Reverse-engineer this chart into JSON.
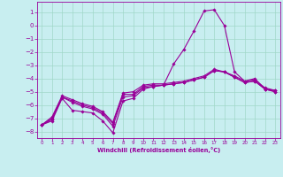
{
  "xlabel": "Windchill (Refroidissement éolien,°C)",
  "bg_color": "#c8eef0",
  "line_color": "#990099",
  "marker": "D",
  "markersize": 1.8,
  "linewidth": 0.8,
  "xlim": [
    -0.5,
    23.5
  ],
  "ylim": [
    -8.5,
    1.8
  ],
  "yticks": [
    1,
    0,
    -1,
    -2,
    -3,
    -4,
    -5,
    -6,
    -7,
    -8
  ],
  "xticks": [
    0,
    1,
    2,
    3,
    4,
    5,
    6,
    7,
    8,
    9,
    10,
    11,
    12,
    13,
    14,
    15,
    16,
    17,
    18,
    19,
    20,
    21,
    22,
    23
  ],
  "grid_color": "#a0d8c8",
  "series": [
    {
      "x": [
        0,
        1,
        2,
        3,
        4,
        5,
        6,
        7,
        8,
        9,
        10,
        11,
        12,
        13,
        14,
        15,
        16,
        17,
        18,
        19,
        20,
        21,
        22,
        23
      ],
      "y": [
        -7.5,
        -7.2,
        -5.5,
        -6.4,
        -6.5,
        -6.6,
        -7.2,
        -8.1,
        -5.7,
        -5.5,
        -4.8,
        -4.6,
        -4.5,
        -2.9,
        -1.8,
        -0.4,
        1.1,
        1.2,
        0.0,
        -3.5,
        -4.2,
        -4.0,
        -4.8,
        -4.9
      ]
    },
    {
      "x": [
        0,
        1,
        2,
        3,
        4,
        5,
        6,
        7,
        8,
        9,
        10,
        11,
        12,
        13,
        14,
        15,
        16,
        17,
        18,
        19,
        20,
        21,
        22,
        23
      ],
      "y": [
        -7.5,
        -7.1,
        -5.4,
        -5.8,
        -6.1,
        -6.3,
        -6.7,
        -7.6,
        -5.4,
        -5.3,
        -4.7,
        -4.6,
        -4.5,
        -4.4,
        -4.3,
        -4.1,
        -3.9,
        -3.4,
        -3.5,
        -3.9,
        -4.3,
        -4.2,
        -4.8,
        -5.0
      ]
    },
    {
      "x": [
        0,
        1,
        2,
        3,
        4,
        5,
        6,
        7,
        8,
        9,
        10,
        11,
        12,
        13,
        14,
        15,
        16,
        17,
        18,
        19,
        20,
        21,
        22,
        23
      ],
      "y": [
        -7.5,
        -7.0,
        -5.4,
        -5.7,
        -6.0,
        -6.2,
        -6.6,
        -7.4,
        -5.2,
        -5.2,
        -4.6,
        -4.5,
        -4.5,
        -4.4,
        -4.3,
        -4.1,
        -3.9,
        -3.4,
        -3.5,
        -3.9,
        -4.3,
        -4.2,
        -4.8,
        -5.0
      ]
    },
    {
      "x": [
        0,
        1,
        2,
        3,
        4,
        5,
        6,
        7,
        8,
        9,
        10,
        11,
        12,
        13,
        14,
        15,
        16,
        17,
        18,
        19,
        20,
        21,
        22,
        23
      ],
      "y": [
        -7.5,
        -6.9,
        -5.3,
        -5.6,
        -5.9,
        -6.1,
        -6.5,
        -7.3,
        -5.1,
        -5.0,
        -4.5,
        -4.4,
        -4.4,
        -4.3,
        -4.2,
        -4.0,
        -3.8,
        -3.3,
        -3.5,
        -3.8,
        -4.2,
        -4.1,
        -4.7,
        -4.9
      ]
    }
  ]
}
